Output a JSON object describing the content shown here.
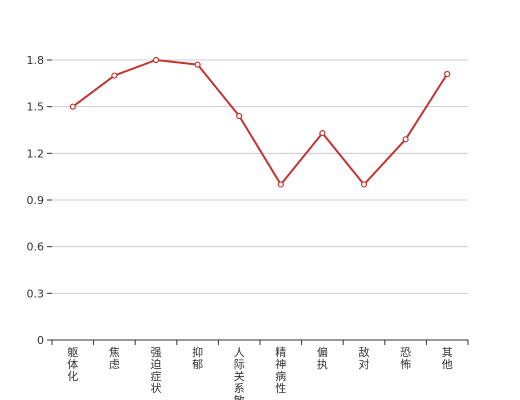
{
  "chart_data": {
    "type": "line",
    "categories": [
      "躯体化",
      "焦虑",
      "强迫症状",
      "抑郁",
      "人际关系敏感",
      "精神病性",
      "偏执",
      "敌对",
      "恐怖",
      "其他"
    ],
    "series": [
      {
        "values": [
          1.5,
          1.7,
          1.8,
          1.77,
          1.44,
          1.0,
          1.33,
          1.0,
          1.29,
          1.71
        ]
      }
    ],
    "yticks": [
      "0",
      "0.3",
      "0.6",
      "0.9",
      "1.2",
      "1.5",
      "1.8"
    ],
    "ylim": [
      0,
      1.8
    ],
    "grid": true,
    "colors": {
      "line": "#c23531",
      "grid": "#cccccc",
      "axis": "#333333"
    }
  }
}
